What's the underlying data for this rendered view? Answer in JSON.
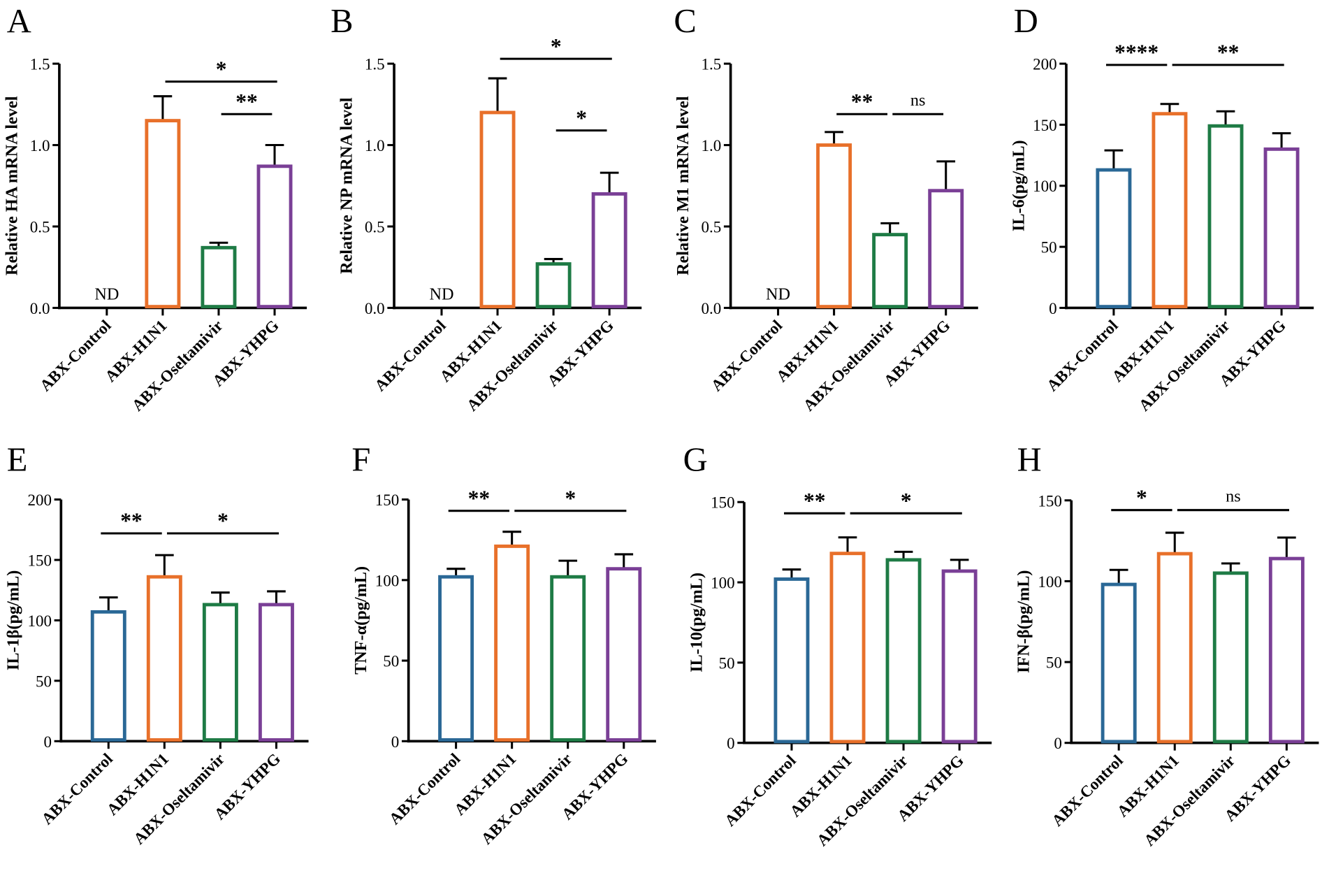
{
  "colors": {
    "control": "#2a6896",
    "h1n1": "#e8702a",
    "oseltamivir": "#1e7b45",
    "yhpg": "#7a3f96"
  },
  "chart_data": [
    {
      "type": "bar",
      "panel": "A",
      "ylabel": "Relative HA mRNA level",
      "ylim": [
        0,
        1.5
      ],
      "yticks": [
        "0.0",
        "0.5",
        "1.0",
        "1.5"
      ],
      "ytick_values": [
        0,
        0.5,
        1.0,
        1.5
      ],
      "categories": [
        "ABX-Control",
        "ABX-H1N1",
        "ABX-Oseltamivir",
        "ABX-YHPG"
      ],
      "values": [
        null,
        1.15,
        0.37,
        0.87
      ],
      "errors": [
        null,
        0.15,
        0.03,
        0.13
      ],
      "nd_label": "ND",
      "significance": [
        {
          "from": 1,
          "to": 3,
          "level": 1.39,
          "label": "*"
        },
        {
          "from": 2,
          "to": 3,
          "level": 1.19,
          "label": "**"
        }
      ]
    },
    {
      "type": "bar",
      "panel": "B",
      "ylabel": "Relative NP mRNA level",
      "ylim": [
        0,
        1.5
      ],
      "yticks": [
        "0.0",
        "0.5",
        "1.0",
        "1.5"
      ],
      "ytick_values": [
        0,
        0.5,
        1.0,
        1.5
      ],
      "categories": [
        "ABX-Control",
        "ABX-H1N1",
        "ABX-Oseltamivir",
        "ABX-YHPG"
      ],
      "values": [
        null,
        1.2,
        0.27,
        0.7
      ],
      "errors": [
        null,
        0.21,
        0.03,
        0.13
      ],
      "nd_label": "ND",
      "significance": [
        {
          "from": 1,
          "to": 3,
          "level": 1.53,
          "label": "*"
        },
        {
          "from": 2,
          "to": 3,
          "level": 1.09,
          "label": "*"
        }
      ]
    },
    {
      "type": "bar",
      "panel": "C",
      "ylabel": "Relative M1 mRNA level",
      "ylim": [
        0,
        1.5
      ],
      "yticks": [
        "0.0",
        "0.5",
        "1.0",
        "1.5"
      ],
      "ytick_values": [
        0,
        0.5,
        1.0,
        1.5
      ],
      "categories": [
        "ABX-Control",
        "ABX-H1N1",
        "ABX-Oseltamivir",
        "ABX-YHPG"
      ],
      "values": [
        null,
        1.0,
        0.45,
        0.72
      ],
      "errors": [
        null,
        0.08,
        0.07,
        0.18
      ],
      "nd_label": "ND",
      "significance": [
        {
          "from": 1,
          "to": 2,
          "level": 1.19,
          "label": "**"
        },
        {
          "from": 2,
          "to": 3,
          "level": 1.19,
          "label": "ns"
        }
      ]
    },
    {
      "type": "bar",
      "panel": "D",
      "ylabel": "IL-6(pg/mL)",
      "ylim": [
        0,
        200
      ],
      "yticks": [
        "0",
        "50",
        "100",
        "150",
        "200"
      ],
      "ytick_values": [
        0,
        50,
        100,
        150,
        200
      ],
      "categories": [
        "ABX-Control",
        "ABX-H1N1",
        "ABX-Oseltamivir",
        "ABX-YHPG"
      ],
      "values": [
        113,
        159,
        149,
        130
      ],
      "errors": [
        16,
        8,
        12,
        13
      ],
      "significance": [
        {
          "from": 0,
          "to": 1,
          "level": 199,
          "label": "****"
        },
        {
          "from": 1,
          "to": 3,
          "level": 199,
          "label": "**"
        }
      ]
    },
    {
      "type": "bar",
      "panel": "E",
      "ylabel": "IL-1β(pg/mL)",
      "ylim": [
        0,
        200
      ],
      "yticks": [
        "0",
        "50",
        "100",
        "150",
        "200"
      ],
      "ytick_values": [
        0,
        50,
        100,
        150,
        200
      ],
      "categories": [
        "ABX-Control",
        "ABX-H1N1",
        "ABX-Oseltamivir",
        "ABX-YHPG"
      ],
      "values": [
        107,
        136,
        113,
        113
      ],
      "errors": [
        12,
        18,
        10,
        11
      ],
      "significance": [
        {
          "from": 0,
          "to": 1,
          "level": 172,
          "label": "**"
        },
        {
          "from": 1,
          "to": 3,
          "level": 172,
          "label": "*"
        }
      ]
    },
    {
      "type": "bar",
      "panel": "F",
      "ylabel": "TNF-α(pg/mL)",
      "ylim": [
        0,
        150
      ],
      "yticks": [
        "0",
        "50",
        "100",
        "150"
      ],
      "ytick_values": [
        0,
        50,
        100,
        150
      ],
      "categories": [
        "ABX-Control",
        "ABX-H1N1",
        "ABX-Oseltamivir",
        "ABX-YHPG"
      ],
      "values": [
        102,
        121,
        102,
        107
      ],
      "errors": [
        5,
        9,
        10,
        9
      ],
      "significance": [
        {
          "from": 0,
          "to": 1,
          "level": 143,
          "label": "**"
        },
        {
          "from": 1,
          "to": 3,
          "level": 143,
          "label": "*"
        }
      ]
    },
    {
      "type": "bar",
      "panel": "G",
      "ylabel": "IL-10(pg/mL)",
      "ylim": [
        0,
        150
      ],
      "yticks": [
        "0",
        "50",
        "100",
        "150"
      ],
      "ytick_values": [
        0,
        50,
        100,
        150
      ],
      "categories": [
        "ABX-Control",
        "ABX-H1N1",
        "ABX-Oseltamivir",
        "ABX-YHPG"
      ],
      "values": [
        102,
        118,
        114,
        107
      ],
      "errors": [
        6,
        10,
        5,
        7
      ],
      "significance": [
        {
          "from": 0,
          "to": 1,
          "level": 143,
          "label": "**"
        },
        {
          "from": 1,
          "to": 3,
          "level": 143,
          "label": "*"
        }
      ]
    },
    {
      "type": "bar",
      "panel": "H",
      "ylabel": "IFN-β(pg/mL)",
      "ylim": [
        0,
        150
      ],
      "yticks": [
        "0",
        "50",
        "100",
        "150"
      ],
      "ytick_values": [
        0,
        50,
        100,
        150
      ],
      "categories": [
        "ABX-Control",
        "ABX-H1N1",
        "ABX-Oseltamivir",
        "ABX-YHPG"
      ],
      "values": [
        98,
        117,
        105,
        114
      ],
      "errors": [
        9,
        13,
        6,
        13
      ],
      "significance": [
        {
          "from": 0,
          "to": 1,
          "level": 144,
          "label": "*"
        },
        {
          "from": 1,
          "to": 3,
          "level": 144,
          "label": "ns"
        }
      ]
    }
  ]
}
